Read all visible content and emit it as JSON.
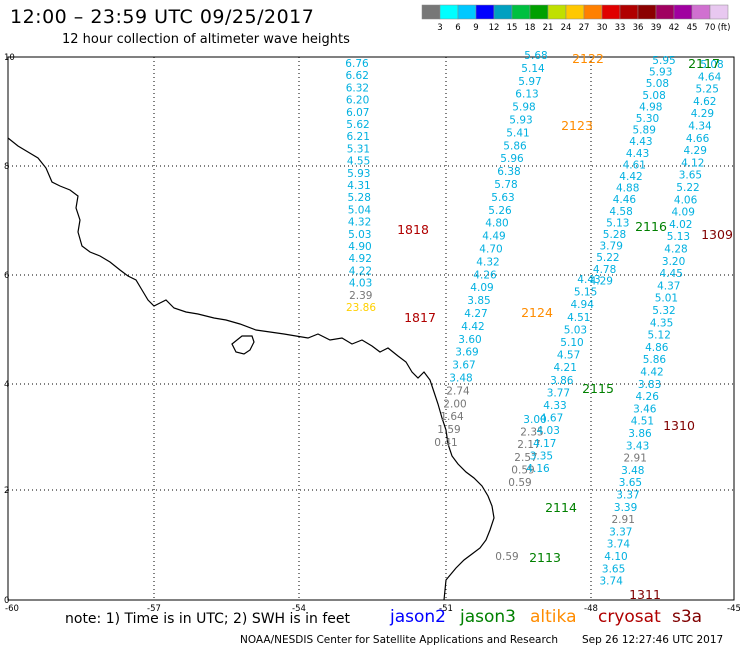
{
  "header": {
    "title": "12:00 – 23:59 UTC 09/25/2017",
    "subtitle": "12 hour collection of altimeter wave heights"
  },
  "legend": {
    "colors": [
      "#777777",
      "#00ffff",
      "#00c8ff",
      "#0000ff",
      "#00a0c0",
      "#00c040",
      "#00a000",
      "#c0e000",
      "#ffc800",
      "#ff8000",
      "#e00000",
      "#b00000",
      "#8b0000",
      "#a00060",
      "#a000a0",
      "#d070d0",
      "#e8c8f0"
    ],
    "labels": [
      "3",
      "6",
      "9",
      "12",
      "15",
      "18",
      "21",
      "24",
      "27",
      "30",
      "33",
      "36",
      "39",
      "42",
      "45",
      "70",
      "(ft)"
    ]
  },
  "axes": {
    "x_ticks": [
      "-60",
      "-57",
      "-54",
      "-51",
      "-48",
      "-45"
    ],
    "y_ticks": [
      "0",
      "2",
      "4",
      "6",
      "8",
      "10"
    ]
  },
  "colors": {
    "jason2": "#0000ff",
    "jason3": "#008000",
    "altika": "#ff8c00",
    "cryosat": "#b00000",
    "s3a": "#800000",
    "low": "#777777",
    "cyan": "#00b0e0",
    "yellow": "#ffd000",
    "coast": "#000000",
    "grid": "#000000"
  },
  "passes": [
    {
      "id": "p1",
      "values": [
        "6.76",
        "6.62",
        "6.32",
        "6.20",
        "6.07",
        "5.62",
        "6.21",
        "5.31",
        "4.55",
        "5.93",
        "4.31",
        "5.28",
        "5.04",
        "4.32",
        "5.03",
        "4.90",
        "4.92",
        "4.22",
        "4.03",
        "2.39",
        "23.86"
      ]
    },
    {
      "id": "p2",
      "values": [
        "5.68",
        "5.14",
        "5.97",
        "6.13",
        "5.98",
        "5.93",
        "5.41",
        "5.86",
        "5.96",
        "6.38",
        "5.78",
        "5.63",
        "5.26",
        "4.80",
        "4.49",
        "4.70",
        "4.32",
        "4.26",
        "4.09",
        "3.85",
        "4.27",
        "4.42",
        "3.60",
        "3.69",
        "3.67",
        "3.48",
        "2.74",
        "2.00",
        "1.64",
        "1.59",
        "0.41"
      ]
    },
    {
      "id": "p3",
      "values": [
        "3.00",
        "2.35",
        "2.17",
        "2.57",
        "0.59",
        "0.59"
      ]
    },
    {
      "id": "p4",
      "values": [
        "4.43",
        "5.15",
        "4.94",
        "4.51",
        "5.03",
        "5.10",
        "4.57",
        "4.21",
        "3.86",
        "3.77",
        "4.33",
        "4.67",
        "4.03",
        "4.17",
        "3.35",
        "4.16"
      ]
    },
    {
      "id": "p5",
      "values": [
        "5.95",
        "5.93",
        "5.08",
        "5.08",
        "4.98",
        "5.30",
        "5.89",
        "4.43",
        "4.43",
        "4.61",
        "4.42",
        "4.88",
        "4.46",
        "4.58",
        "5.13",
        "5.28",
        "3.79",
        "5.22",
        "4.78",
        "4.29"
      ]
    },
    {
      "id": "p6",
      "values": [
        "5.08",
        "4.64",
        "5.25",
        "4.62",
        "4.29",
        "4.34",
        "4.66",
        "4.29",
        "4.12",
        "3.65",
        "5.22",
        "4.06",
        "4.09",
        "4.02",
        "5.13",
        "4.28",
        "3.20",
        "4.45",
        "4.37",
        "5.01",
        "5.32",
        "4.35",
        "5.12",
        "4.86",
        "5.86",
        "4.42",
        "3.83",
        "4.26",
        "3.46",
        "4.51",
        "3.86",
        "3.43",
        "2.91",
        "3.48",
        "3.65",
        "3.37",
        "3.39",
        "2.91",
        "3.37",
        "3.74",
        "4.10",
        "3.65",
        "3.74"
      ]
    },
    {
      "id": "p7",
      "values": [
        "0.59"
      ]
    }
  ],
  "cycle_labels": [
    {
      "text": "2122",
      "sat": "altika"
    },
    {
      "text": "2123",
      "sat": "altika"
    },
    {
      "text": "2124",
      "sat": "altika"
    },
    {
      "text": "2117",
      "sat": "jason3"
    },
    {
      "text": "2116",
      "sat": "jason3"
    },
    {
      "text": "2115",
      "sat": "jason3"
    },
    {
      "text": "2114",
      "sat": "jason3"
    },
    {
      "text": "2113",
      "sat": "jason3"
    },
    {
      "text": "1818",
      "sat": "cryosat"
    },
    {
      "text": "1817",
      "sat": "cryosat"
    },
    {
      "text": "1309",
      "sat": "s3a"
    },
    {
      "text": "1310",
      "sat": "s3a"
    },
    {
      "text": "1311",
      "sat": "s3a"
    }
  ],
  "footer": {
    "note": "note:  1) Time is in UTC;  2) SWH is in feet",
    "satellites": [
      "jason2",
      "jason3",
      "altika",
      "cryosat",
      "s3a"
    ],
    "credit": "NOAA/NESDIS Center for Satellite Applications and Research",
    "timestamp": "Sep 26 12:27:46 UTC 2017"
  }
}
